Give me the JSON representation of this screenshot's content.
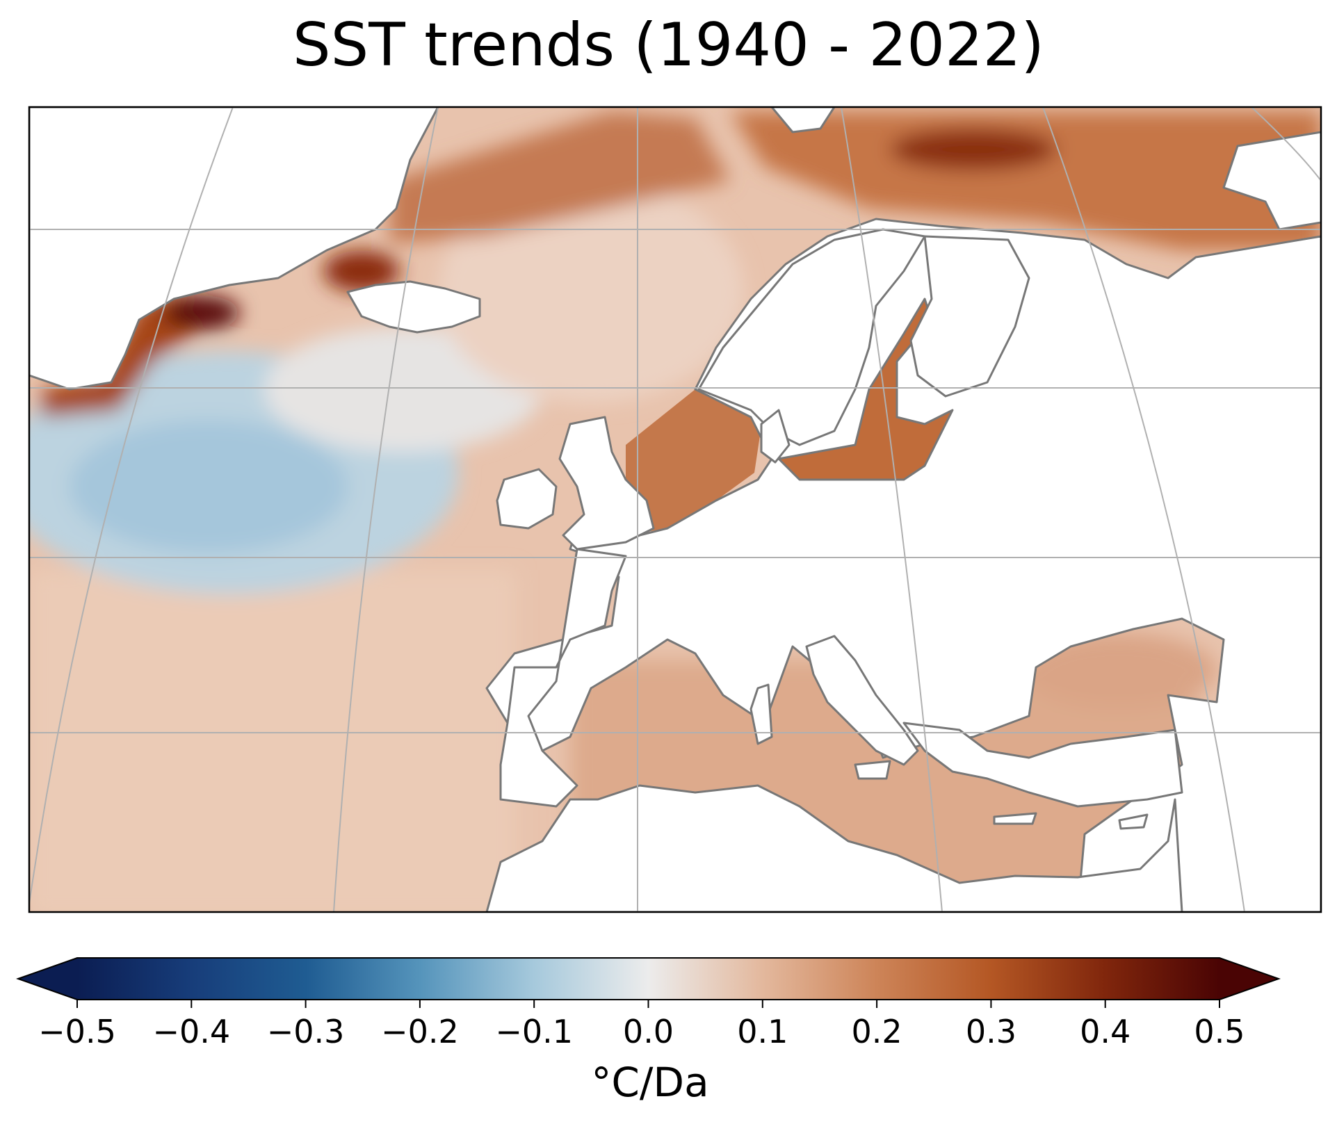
{
  "title": "SST trends (1940 - 2022)",
  "colorbar": {
    "label": "°C/Da",
    "min": -0.5,
    "max": 0.5,
    "extend": "both",
    "colormap": "RdBu_r-brown (blue → white → brown)",
    "ticks": [
      "−0.5",
      "−0.4",
      "−0.3",
      "−0.2",
      "−0.1",
      "0.0",
      "0.1",
      "0.2",
      "0.3",
      "0.4",
      "0.5"
    ],
    "colors": {
      "min": "#0b1d52",
      "mid": "#ececec",
      "max": "#4a0404"
    }
  },
  "map": {
    "region": "North Atlantic and Europe",
    "coastline_color": "#777777",
    "gridline_color": "#b0b0b0",
    "land_color": "#ffffff",
    "regions": [
      {
        "name": "Labrador Sea / SE Greenland coast",
        "trend": 0.48
      },
      {
        "name": "Denmark Strait / NW of Iceland",
        "trend": 0.38
      },
      {
        "name": "Subpolar gyre (south of Greenland)",
        "trend": -0.13
      },
      {
        "name": "Norwegian Sea",
        "trend": 0.12
      },
      {
        "name": "Barents Sea",
        "trend": 0.28
      },
      {
        "name": "North Sea",
        "trend": 0.24
      },
      {
        "name": "Baltic Sea",
        "trend": 0.25
      },
      {
        "name": "Gulf of Finland",
        "trend": 0.45
      },
      {
        "name": "White Sea",
        "trend": 0.5
      },
      {
        "name": "Subtropical Atlantic",
        "trend": 0.1
      },
      {
        "name": "Mediterranean Sea",
        "trend": 0.16
      },
      {
        "name": "Black Sea",
        "trend": 0.18
      }
    ]
  }
}
